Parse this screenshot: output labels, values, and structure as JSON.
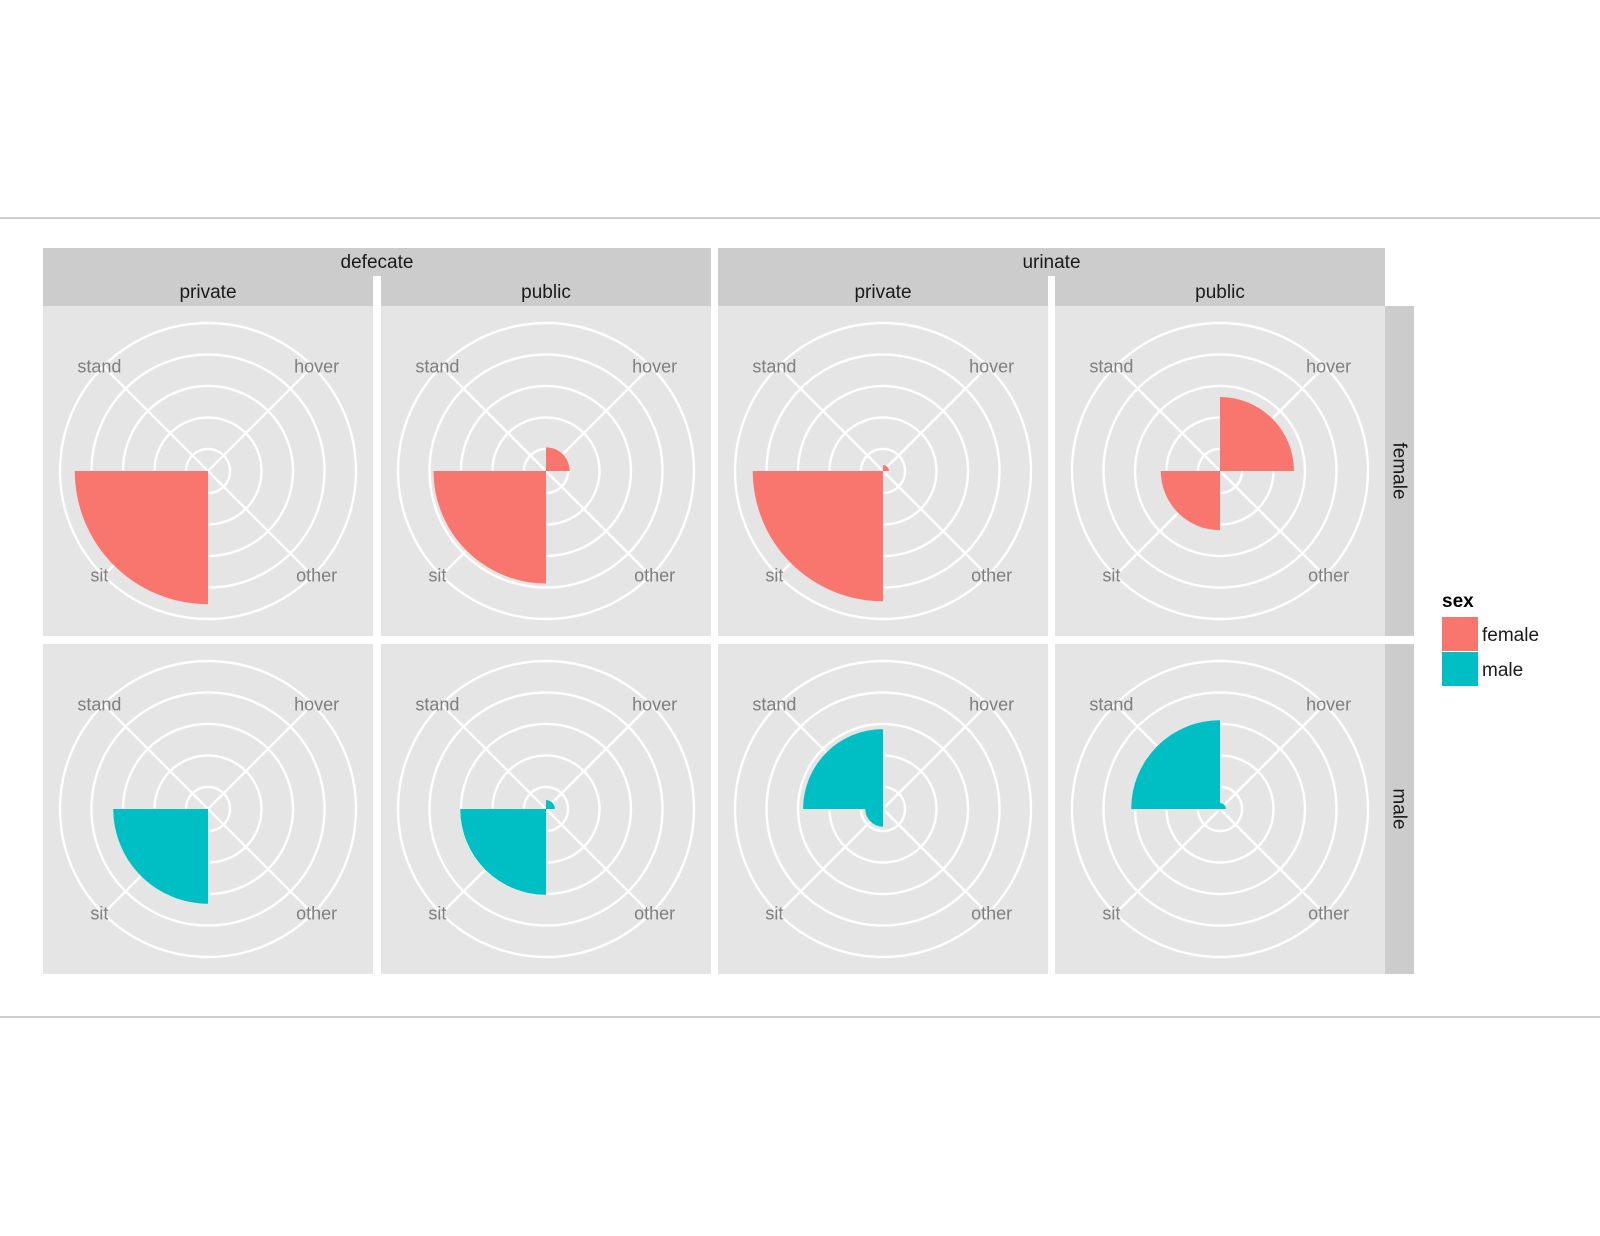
{
  "chart_data": {
    "type": "polar-bar",
    "facet_top": [
      "defecate",
      "urinate"
    ],
    "facet_cols": [
      "private",
      "public",
      "private",
      "public"
    ],
    "facet_rows": [
      "female",
      "male"
    ],
    "categories": [
      "hover",
      "other",
      "sit",
      "stand"
    ],
    "r_max": 5,
    "grid": true,
    "legend": {
      "title": "sex",
      "position": "right",
      "entries": [
        {
          "name": "female",
          "color": "#F8766D"
        },
        {
          "name": "male",
          "color": "#00BFC4"
        }
      ]
    },
    "panels": [
      {
        "top": "defecate",
        "col": "private",
        "row": "female",
        "series": "female",
        "values": {
          "hover": 0,
          "other": 0,
          "sit": 4.5,
          "stand": 0
        }
      },
      {
        "top": "defecate",
        "col": "public",
        "row": "female",
        "series": "female",
        "values": {
          "hover": 0.8,
          "other": 0,
          "sit": 3.8,
          "stand": 0
        }
      },
      {
        "top": "urinate",
        "col": "private",
        "row": "female",
        "series": "female",
        "values": {
          "hover": 0.2,
          "other": 0,
          "sit": 4.4,
          "stand": 0
        }
      },
      {
        "top": "urinate",
        "col": "public",
        "row": "female",
        "series": "female",
        "values": {
          "hover": 2.5,
          "other": 0,
          "sit": 2.0,
          "stand": 0
        }
      },
      {
        "top": "defecate",
        "col": "private",
        "row": "male",
        "series": "male",
        "values": {
          "hover": 0,
          "other": 0,
          "sit": 3.2,
          "stand": 0
        }
      },
      {
        "top": "defecate",
        "col": "public",
        "row": "male",
        "series": "male",
        "values": {
          "hover": 0.3,
          "other": 0,
          "sit": 2.9,
          "stand": 0
        }
      },
      {
        "top": "urinate",
        "col": "private",
        "row": "male",
        "series": "male",
        "values": {
          "hover": 0,
          "other": 0,
          "sit": 0.6,
          "stand": 2.7
        }
      },
      {
        "top": "urinate",
        "col": "public",
        "row": "male",
        "series": "male",
        "values": {
          "hover": 0.2,
          "other": 0,
          "sit": 0,
          "stand": 3.0
        }
      }
    ]
  }
}
